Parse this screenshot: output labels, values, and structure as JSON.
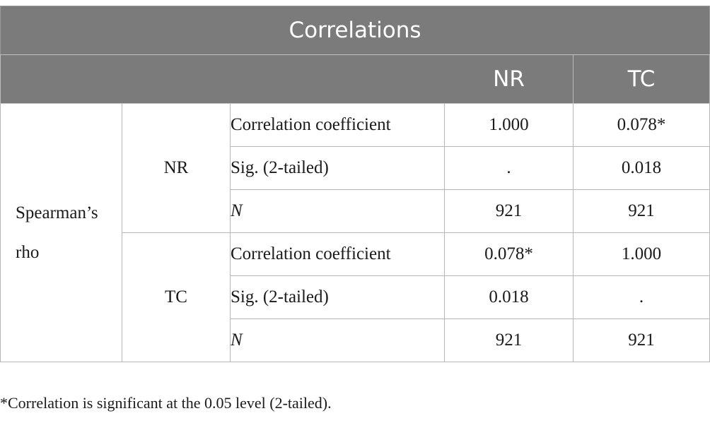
{
  "table": {
    "title": "Correlations",
    "columns": [
      "NR",
      "TC"
    ],
    "method": "Spearman’s rho",
    "groups": [
      {
        "variable": "NR",
        "rows": [
          {
            "stat": "Correlation coefficient",
            "nr": "1.000",
            "tc": "0.078*"
          },
          {
            "stat": "Sig. (2-tailed)",
            "nr": ".",
            "tc": "0.018"
          },
          {
            "stat": "N",
            "nr": "921",
            "tc": "921"
          }
        ]
      },
      {
        "variable": "TC",
        "rows": [
          {
            "stat": "Correlation coefficient",
            "nr": "0.078*",
            "tc": "1.000"
          },
          {
            "stat": "Sig. (2-tailed)",
            "nr": "0.018",
            "tc": "."
          },
          {
            "stat": "N",
            "nr": "921",
            "tc": "921"
          }
        ]
      }
    ]
  },
  "footnote": "*Correlation is significant at the 0.05 level (2-tailed)."
}
